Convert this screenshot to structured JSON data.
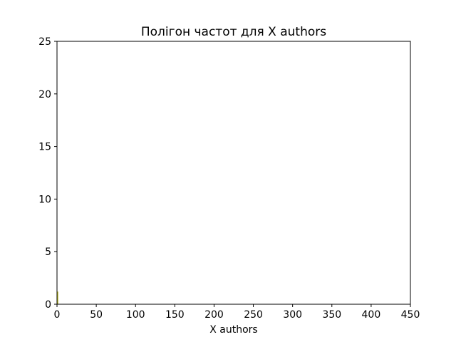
{
  "chart_data": {
    "type": "line",
    "title": "Полігон частот для X authors",
    "xlabel": "X authors",
    "ylabel": "",
    "xlim": [
      0,
      450
    ],
    "ylim": [
      0,
      25
    ],
    "xticks": [
      "0",
      "50",
      "100",
      "150",
      "200",
      "250",
      "300",
      "350",
      "400",
      "450"
    ],
    "yticks": [
      "0",
      "5",
      "10",
      "15",
      "20",
      "25"
    ],
    "grid": false,
    "series": [
      {
        "color": "#bcbd22",
        "x": [
          1,
          1,
          1
        ],
        "y": [
          0,
          1.2,
          0
        ]
      }
    ]
  }
}
